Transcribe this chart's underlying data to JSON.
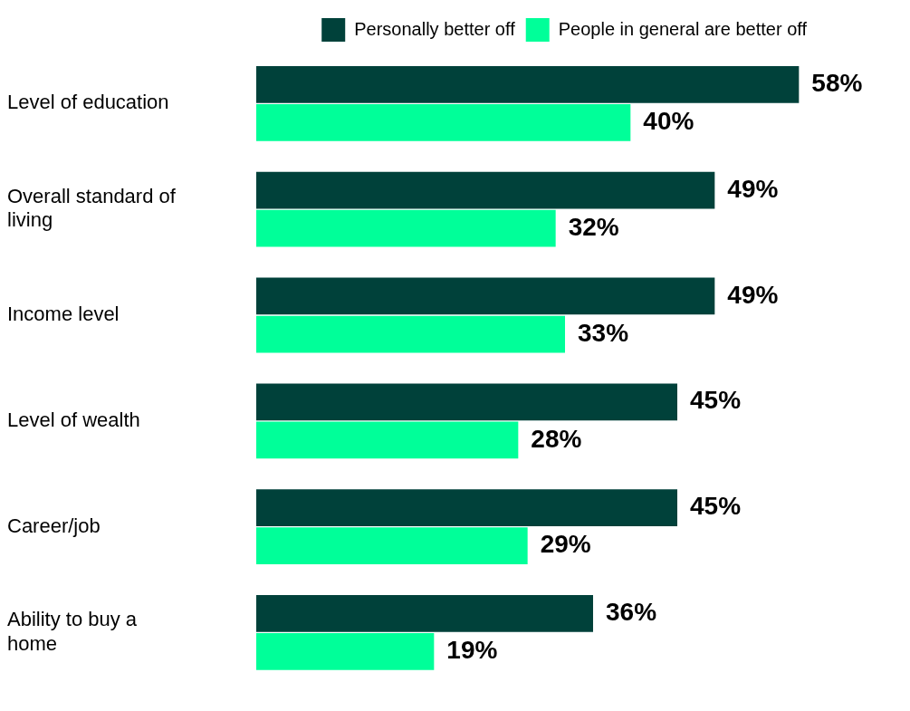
{
  "chart_data": {
    "type": "bar",
    "orientation": "horizontal",
    "categories": [
      "Level of education",
      "Overall standard of living",
      "Income level",
      "Level of wealth",
      "Career/job",
      "Ability to buy a home"
    ],
    "series": [
      {
        "name": "Personally better off",
        "color": "#00413a",
        "values": [
          58,
          49,
          49,
          45,
          45,
          36
        ],
        "value_labels": [
          "58%",
          "49%",
          "49%",
          "45%",
          "45%",
          "36%"
        ]
      },
      {
        "name": "People in general are better off",
        "color": "#00ff99",
        "values": [
          40,
          32,
          33,
          28,
          29,
          19
        ],
        "value_labels": [
          "40%",
          "32%",
          "33%",
          "28%",
          "29%",
          "19%"
        ]
      }
    ],
    "legend": "top right",
    "grid": false
  }
}
